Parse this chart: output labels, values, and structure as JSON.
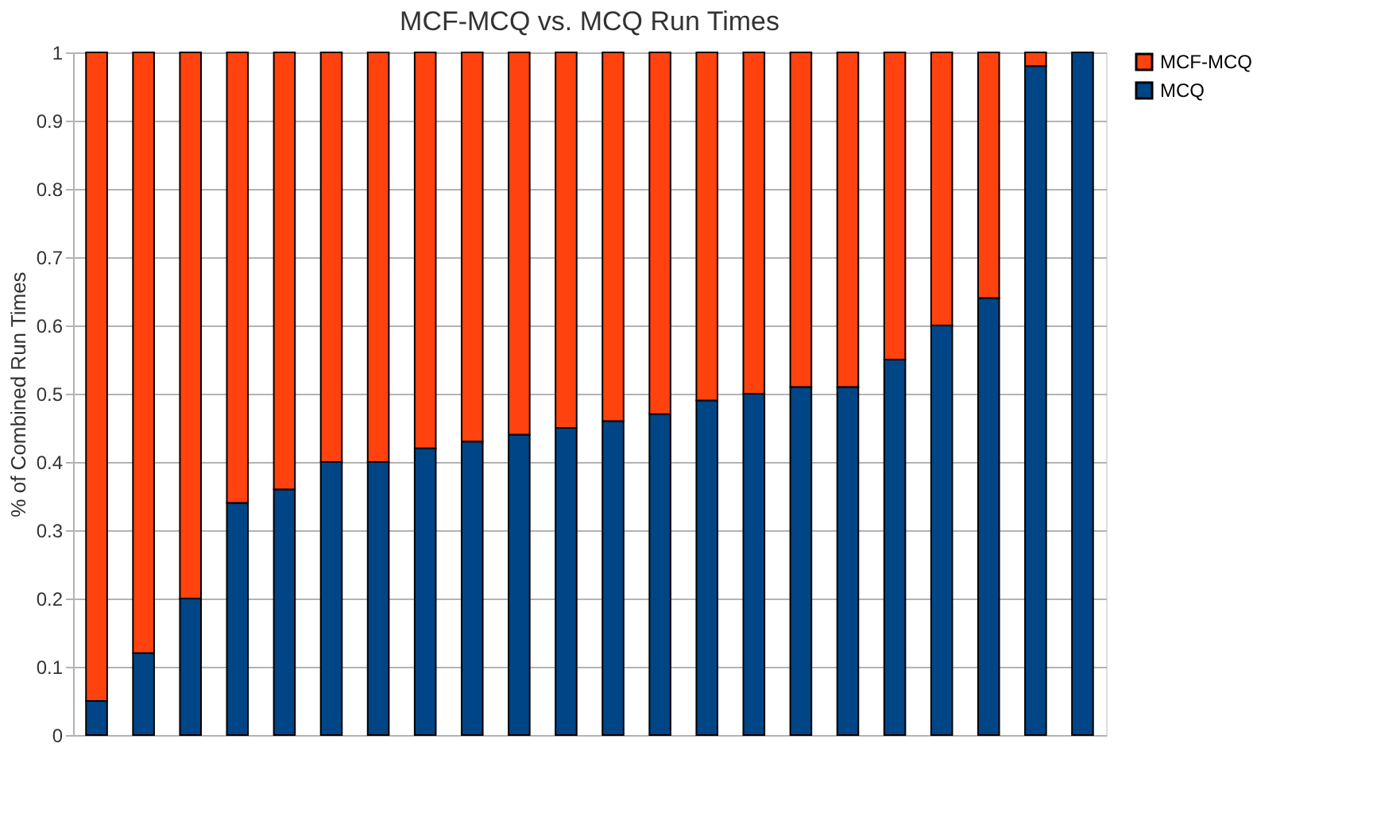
{
  "chart_data": {
    "type": "bar",
    "title": "MCF-MCQ vs. MCQ Run Times",
    "ylabel": "% of Combined Run Times",
    "categories": [
      null,
      null,
      null,
      null,
      null,
      null,
      null,
      null,
      null,
      null,
      null,
      null,
      null,
      null,
      null,
      null,
      null,
      null,
      null,
      null,
      null,
      null
    ],
    "stacked": true,
    "series": [
      {
        "name": "MCQ",
        "color": "#004586",
        "values": [
          0.05,
          0.12,
          0.2,
          0.34,
          0.36,
          0.4,
          0.4,
          0.42,
          0.43,
          0.44,
          0.45,
          0.46,
          0.47,
          0.49,
          0.5,
          0.51,
          0.51,
          0.55,
          0.6,
          0.64,
          0.98,
          1.0
        ]
      },
      {
        "name": "MCF-MCQ",
        "color": "#ff420e",
        "values": [
          0.95,
          0.88,
          0.8,
          0.66,
          0.64,
          0.6,
          0.6,
          0.58,
          0.57,
          0.56,
          0.55,
          0.54,
          0.53,
          0.51,
          0.5,
          0.49,
          0.49,
          0.45,
          0.4,
          0.36,
          0.02,
          null
        ]
      }
    ],
    "ylim": [
      0,
      1
    ],
    "yticks": [
      0,
      0.1,
      0.2,
      0.3,
      0.4,
      0.5,
      0.6,
      0.7,
      0.8,
      0.9,
      1
    ],
    "grid": "y",
    "legend": "right",
    "tick_labels": "y"
  }
}
